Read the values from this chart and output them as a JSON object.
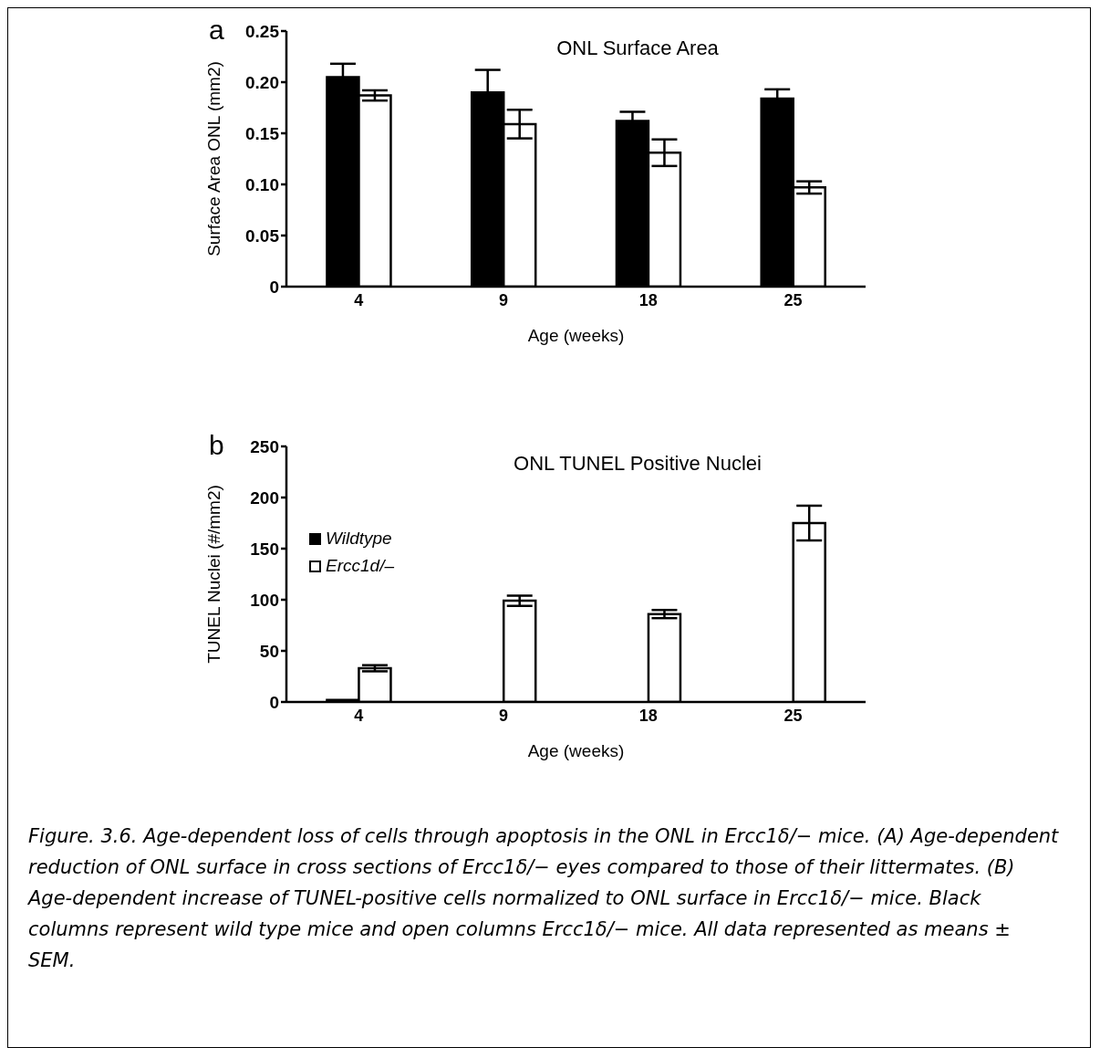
{
  "chart_data": [
    {
      "type": "bar",
      "title": "ONL Surface Area",
      "xlabel": "Age (weeks)",
      "ylabel": "Surface Area ONL (mm2)",
      "annotations": [
        "a"
      ],
      "categories": [
        "4",
        "9",
        "18",
        "25"
      ],
      "series": [
        {
          "color": "#000000",
          "values": [
            0.205,
            0.19,
            0.162,
            0.184
          ],
          "errors": [
            0.013,
            0.022,
            0.009,
            0.009
          ]
        },
        {
          "color": "#ffffff",
          "values": [
            0.187,
            0.159,
            0.131,
            0.097
          ],
          "errors": [
            0.005,
            0.014,
            0.013,
            0.006
          ]
        }
      ],
      "ylim": [
        0,
        0.25
      ],
      "yticks": [
        0,
        0.05,
        {
          "value": 0.1,
          "label": "0.10"
        },
        0.15,
        {
          "value": 0.2,
          "label": "0.20"
        },
        0.25
      ],
      "grid": false,
      "legend": false
    },
    {
      "type": "bar",
      "title": "ONL TUNEL Positive Nuclei",
      "xlabel": "Age (weeks)",
      "ylabel": "TUNEL Nuclei (#/mm2)",
      "annotations": [
        "b",
        "Figure. 3.6. Age-dependent loss of cells through apoptosis in the ONL in Ercc1δ/− mice. (A) Age-dependent reduction of ONL surface in cross sections of Ercc1δ/− eyes compared to those of their littermates. (B) Age-dependent increase of TUNEL-positive cells normalized to ONL surface in Ercc1δ/− mice. Black columns represent wild type mice and open columns Ercc1δ/− mice. All data represented as means ± SEM."
      ],
      "categories": [
        "4",
        "9",
        "18",
        "25"
      ],
      "series": [
        {
          "name": "Wildtype",
          "color": "#000000",
          "values": [
            2,
            null,
            null,
            null
          ]
        },
        {
          "name": "Ercc1d/–",
          "color": "#ffffff",
          "values": [
            33,
            99,
            86,
            175
          ],
          "errors": [
            3,
            5,
            4,
            17
          ]
        }
      ],
      "ylim": [
        0,
        250
      ],
      "yticks": [
        0,
        50,
        100,
        150,
        200,
        250
      ],
      "grid": false,
      "legend": "top left"
    }
  ]
}
